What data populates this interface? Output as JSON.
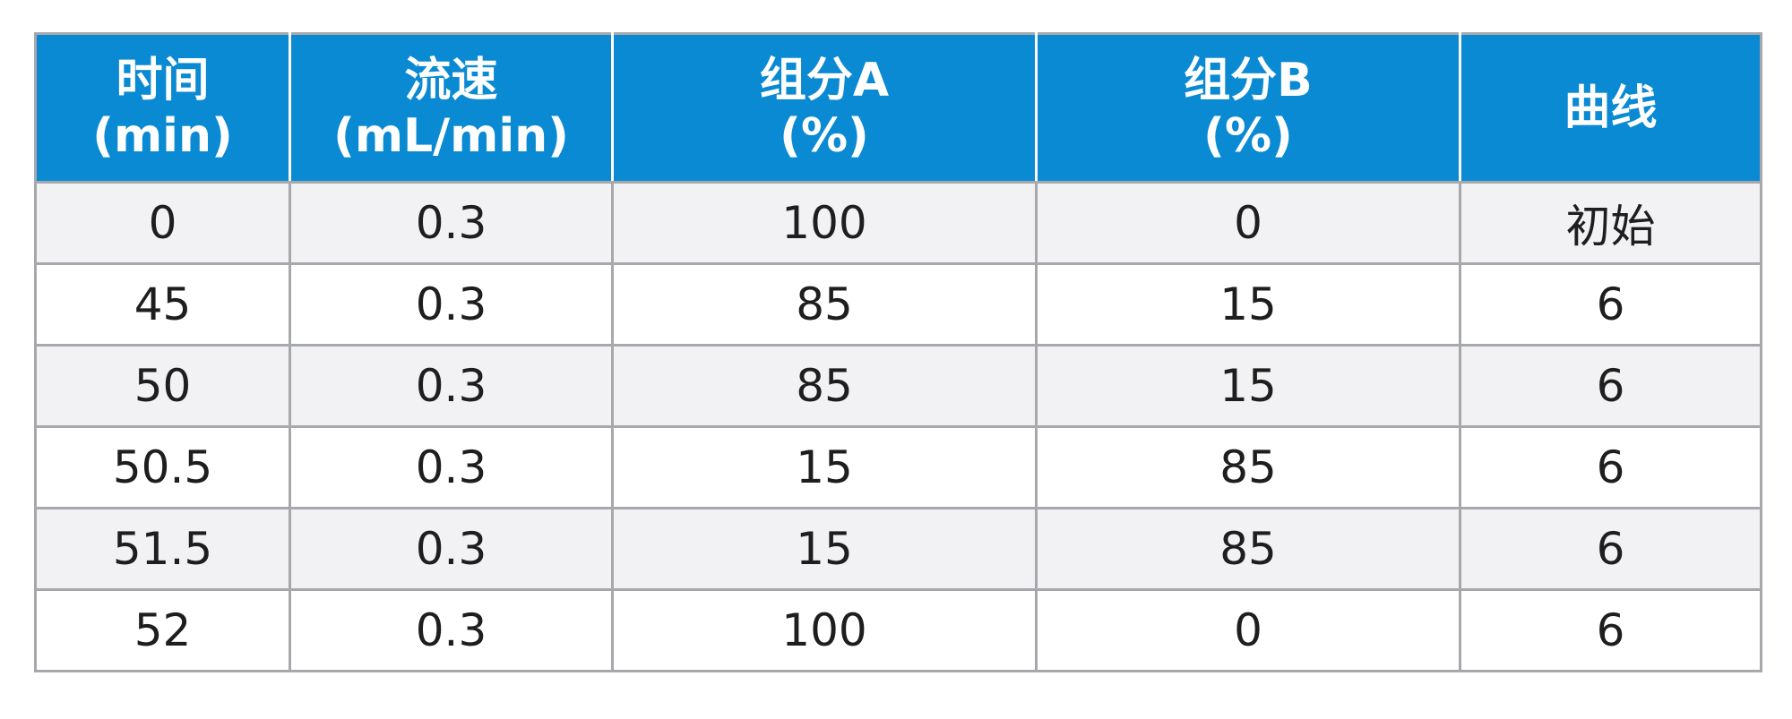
{
  "colors": {
    "header_bg": "#0a8ad2",
    "header_text": "#ffffff",
    "row_alt_bg": "#f2f2f4",
    "border": "#a6a8ab"
  },
  "table": {
    "headers": [
      {
        "line1": "时间",
        "line2": "(min)"
      },
      {
        "line1": "流速",
        "line2": "(mL/min)"
      },
      {
        "line1": "组分A",
        "line2": "(%)"
      },
      {
        "line1": "组分B",
        "line2": "(%)"
      },
      {
        "line1": "曲线",
        "line2": ""
      }
    ],
    "rows": [
      [
        "0",
        "0.3",
        "100",
        "0",
        "初始"
      ],
      [
        "45",
        "0.3",
        "85",
        "15",
        "6"
      ],
      [
        "50",
        "0.3",
        "85",
        "15",
        "6"
      ],
      [
        "50.5",
        "0.3",
        "15",
        "85",
        "6"
      ],
      [
        "51.5",
        "0.3",
        "15",
        "85",
        "6"
      ],
      [
        "52",
        "0.3",
        "100",
        "0",
        "6"
      ]
    ]
  }
}
